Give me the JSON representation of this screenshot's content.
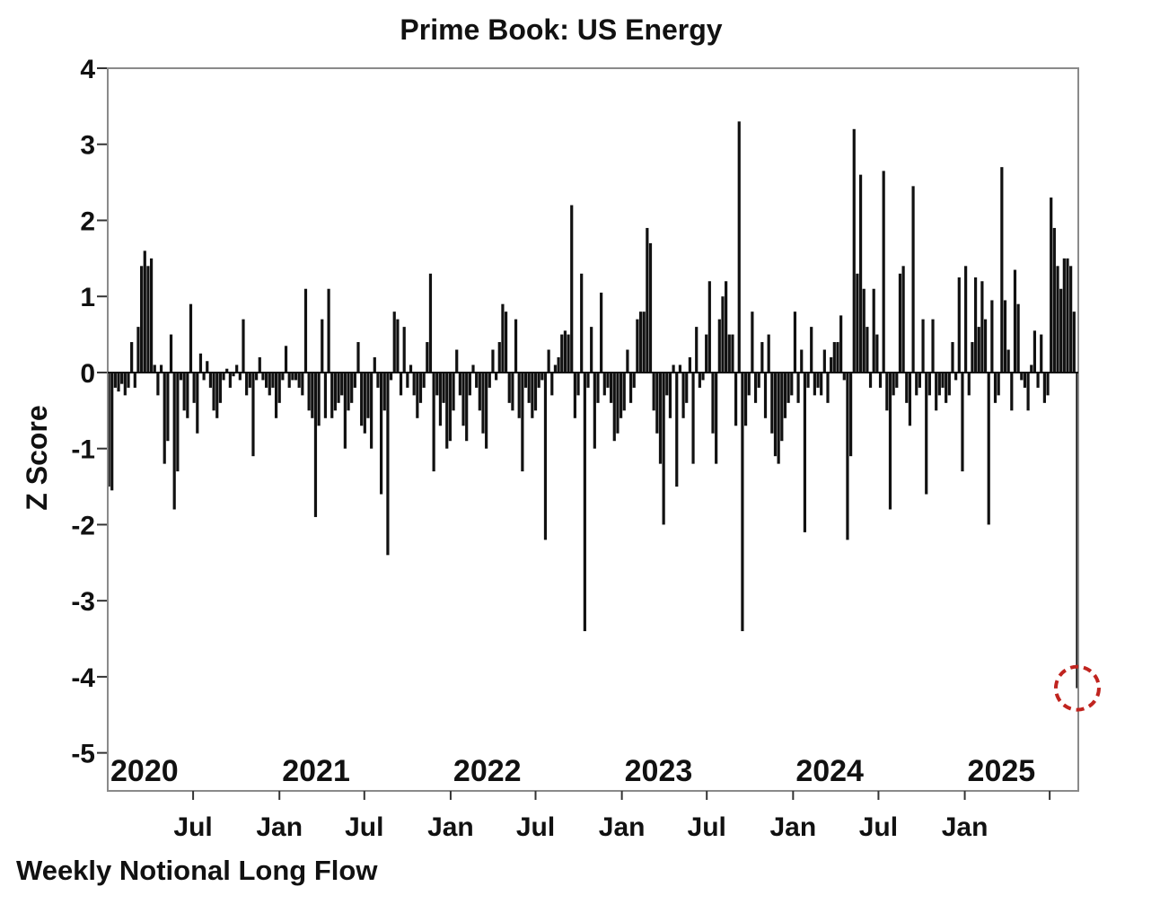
{
  "chart_data": {
    "type": "bar",
    "title": "Prime Book: US Energy",
    "ylabel": "Z Score",
    "xlabel": "",
    "footnote": "Weekly Notional Long Flow",
    "ylim": [
      -5.5,
      4
    ],
    "y_ticks": [
      4,
      3,
      2,
      1,
      0,
      -1,
      -2,
      -3,
      -4,
      -5
    ],
    "frequency": "weekly",
    "x_start": "2020-01-03",
    "year_labels": [
      "2020",
      "2021",
      "2022",
      "2023",
      "2024",
      "2025"
    ],
    "month_ticks": [
      "Jul",
      "Jan",
      "Jul",
      "Jan",
      "Jul",
      "Jan",
      "Jul",
      "Jan",
      "Jul",
      "Jan"
    ],
    "annotation": {
      "label": "latest week highlighted",
      "value": -4.15,
      "color": "#c0241f"
    },
    "bar_color": "#111111",
    "values": [
      -1.5,
      -1.55,
      -0.2,
      -0.25,
      -0.15,
      -0.3,
      -0.2,
      0.4,
      -0.2,
      0.6,
      1.4,
      1.6,
      1.4,
      1.5,
      0.1,
      -0.3,
      0.1,
      -1.2,
      -0.9,
      0.5,
      -1.8,
      -1.3,
      -0.1,
      -0.5,
      -0.6,
      0.9,
      -0.4,
      -0.8,
      0.25,
      -0.1,
      0.15,
      -0.2,
      -0.5,
      -0.6,
      -0.4,
      -0.1,
      0.05,
      -0.2,
      -0.05,
      0.1,
      -0.1,
      0.7,
      -0.3,
      -0.2,
      -1.1,
      -0.1,
      0.2,
      -0.1,
      -0.2,
      -0.3,
      -0.2,
      -0.6,
      -0.4,
      -0.1,
      0.35,
      -0.2,
      -0.1,
      -0.1,
      -0.2,
      -0.3,
      1.1,
      -0.5,
      -0.6,
      -1.9,
      -0.7,
      0.7,
      -0.6,
      1.1,
      -0.6,
      -0.5,
      -0.4,
      -0.3,
      -1.0,
      -0.5,
      -0.4,
      -0.2,
      0.4,
      -0.7,
      -0.8,
      -0.6,
      -1.0,
      0.2,
      -0.2,
      -1.6,
      -0.5,
      -2.4,
      -0.1,
      0.8,
      0.7,
      -0.3,
      0.6,
      -0.2,
      0.1,
      -0.3,
      -0.6,
      -0.4,
      -0.2,
      0.4,
      1.3,
      -1.3,
      -0.3,
      -0.7,
      -0.4,
      -1.0,
      -0.9,
      -0.5,
      0.3,
      -0.3,
      -0.7,
      -0.9,
      -0.3,
      0.1,
      -0.2,
      -0.5,
      -0.8,
      -1.0,
      -0.2,
      0.3,
      -0.1,
      0.4,
      0.9,
      0.8,
      -0.4,
      -0.5,
      0.7,
      -0.6,
      -1.3,
      -0.2,
      -0.4,
      -0.6,
      -0.5,
      -0.2,
      -0.1,
      -2.2,
      0.3,
      -0.3,
      0.1,
      0.2,
      0.5,
      0.55,
      0.5,
      2.2,
      -0.6,
      -0.3,
      1.3,
      -3.4,
      -0.2,
      0.6,
      -1.0,
      -0.4,
      1.05,
      -0.3,
      -0.2,
      -0.4,
      -0.9,
      -0.8,
      -0.6,
      -0.5,
      0.3,
      -0.4,
      -0.2,
      0.7,
      0.8,
      0.8,
      1.9,
      1.7,
      -0.5,
      -0.8,
      -1.2,
      -2.0,
      -0.3,
      -0.6,
      0.1,
      -1.5,
      0.1,
      -0.6,
      -0.4,
      0.2,
      -1.2,
      0.6,
      -0.2,
      -0.1,
      0.5,
      1.2,
      -0.8,
      -1.2,
      0.7,
      1.0,
      1.2,
      0.5,
      0.5,
      -0.7,
      3.3,
      -3.4,
      -0.7,
      -0.3,
      0.8,
      -0.4,
      -0.2,
      0.4,
      -0.6,
      0.5,
      -0.8,
      -1.1,
      -1.2,
      -0.9,
      -0.6,
      -0.4,
      -0.3,
      0.8,
      -0.4,
      0.3,
      -2.1,
      -0.2,
      0.6,
      -0.3,
      -0.2,
      -0.3,
      0.3,
      -0.4,
      0.2,
      0.4,
      0.4,
      0.75,
      -0.1,
      -2.2,
      -1.1,
      3.2,
      1.3,
      2.6,
      1.1,
      0.6,
      -0.2,
      1.1,
      0.5,
      -0.2,
      2.65,
      -0.5,
      -1.8,
      -0.3,
      -0.2,
      1.3,
      1.4,
      -0.4,
      -0.7,
      2.45,
      -0.3,
      -0.2,
      0.7,
      -1.6,
      -0.3,
      0.7,
      -0.5,
      -0.3,
      -0.2,
      -0.4,
      -0.3,
      0.4,
      -0.1,
      1.25,
      -1.3,
      1.4,
      -0.3,
      0.4,
      1.25,
      0.6,
      1.2,
      0.7,
      -2.0,
      0.95,
      -0.4,
      -0.3,
      2.7,
      0.95,
      0.3,
      -0.5,
      1.35,
      0.9,
      -0.1,
      -0.2,
      -0.5,
      0.1,
      0.55,
      -0.2,
      0.5,
      -0.4,
      -0.3,
      2.3,
      1.9,
      1.4,
      1.1,
      1.5,
      1.5,
      1.4,
      0.8,
      -4.15
    ]
  }
}
